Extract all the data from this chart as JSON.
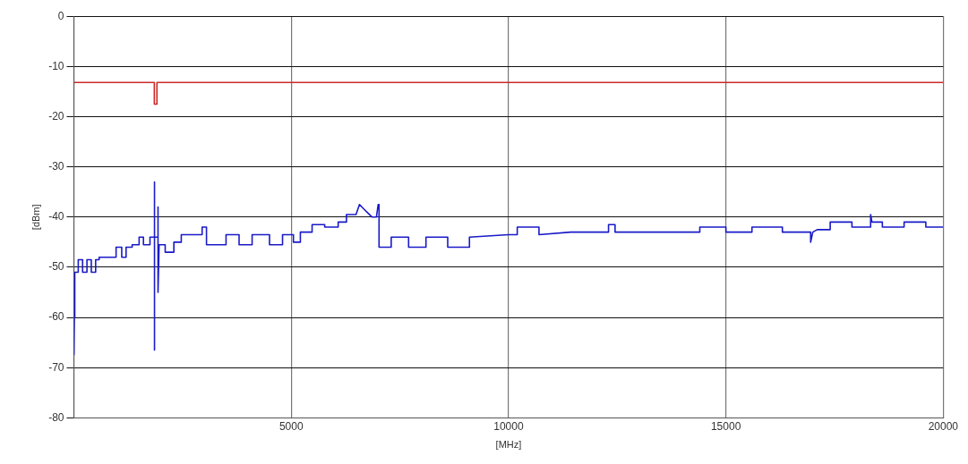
{
  "chart_data": {
    "type": "line",
    "xlabel": "[MHz]",
    "ylabel": "[dBm]",
    "xlim": [
      0,
      20000
    ],
    "ylim": [
      -80,
      0
    ],
    "xticks": [
      {
        "value": 0,
        "label": null
      },
      5000,
      10000,
      15000,
      20000
    ],
    "yticks": [
      0,
      -10,
      -20,
      -30,
      -40,
      -50,
      -60,
      -70,
      -80
    ],
    "grid": true,
    "legend": false,
    "marker": "none",
    "line_style": "solid",
    "series": [
      {
        "color": "#cc2a2a",
        "x": [
          0,
          1850,
          1850,
          1910,
          1910,
          20000
        ],
        "values": [
          -13.2,
          -13.2,
          -17.5,
          -17.5,
          -13.2,
          -13.2
        ]
      },
      {
        "color": "#1a1ac8",
        "x": [
          0,
          10,
          20,
          100,
          100,
          200,
          200,
          300,
          300,
          400,
          400,
          500,
          500,
          580,
          580,
          970,
          970,
          1100,
          1100,
          1200,
          1200,
          1340,
          1340,
          1500,
          1500,
          1600,
          1600,
          1750,
          1750,
          1854,
          1854,
          1854,
          1854,
          1935,
          1935,
          1935,
          1960,
          2100,
          2100,
          2300,
          2300,
          2470,
          2470,
          2950,
          2950,
          3050,
          3050,
          3500,
          3500,
          3800,
          3800,
          4100,
          4100,
          4500,
          4500,
          4800,
          4800,
          5050,
          5050,
          5210,
          5210,
          5480,
          5480,
          5770,
          5770,
          6080,
          6080,
          6270,
          6270,
          6490,
          6570,
          6740,
          6860,
          6960,
          7000,
          7020,
          7020,
          7300,
          7300,
          7700,
          7700,
          8100,
          8100,
          8600,
          8600,
          9100,
          9100,
          10000,
          10200,
          10200,
          10700,
          10700,
          11430,
          12300,
          12300,
          12450,
          12450,
          14400,
          14400,
          15000,
          15000,
          15600,
          15600,
          16300,
          16300,
          16950,
          16950,
          17000,
          17100,
          17400,
          17400,
          17900,
          17900,
          18330,
          18330,
          18360,
          18600,
          18600,
          19100,
          19100,
          19600,
          19600,
          20000
        ],
        "values": [
          -67.5,
          -60,
          -51,
          -51,
          -48.5,
          -48.5,
          -51,
          -51,
          -48.5,
          -48.5,
          -51,
          -51,
          -48.5,
          -48.5,
          -48,
          -48,
          -46,
          -46,
          -48,
          -48,
          -46,
          -46,
          -45.5,
          -45.5,
          -44,
          -44,
          -45.5,
          -45.5,
          -44,
          -44,
          -33,
          -66.5,
          -44,
          -44,
          -38,
          -55,
          -45.5,
          -45.5,
          -47,
          -47,
          -45,
          -45,
          -43.5,
          -43.5,
          -42,
          -42,
          -45.5,
          -45.5,
          -43.5,
          -43.5,
          -45.5,
          -45.5,
          -43.5,
          -43.5,
          -45.5,
          -45.5,
          -43.5,
          -43.5,
          -45,
          -45,
          -43,
          -43,
          -41.5,
          -41.5,
          -42,
          -42,
          -41,
          -41,
          -39.5,
          -39.5,
          -37.5,
          -39,
          -40,
          -40,
          -37.5,
          -37.5,
          -46,
          -46,
          -44,
          -44,
          -46,
          -46,
          -44,
          -44,
          -46,
          -46,
          -44,
          -43.5,
          -43.5,
          -42,
          -42,
          -43.5,
          -43,
          -43,
          -41.5,
          -41.5,
          -43,
          -43,
          -42,
          -42,
          -43,
          -43,
          -42,
          -42,
          -43,
          -43,
          -45,
          -43,
          -42.5,
          -42.5,
          -41,
          -41,
          -42,
          -42,
          -39.5,
          -41,
          -41,
          -42,
          -42,
          -41,
          -41,
          -42,
          -42
        ]
      }
    ]
  }
}
